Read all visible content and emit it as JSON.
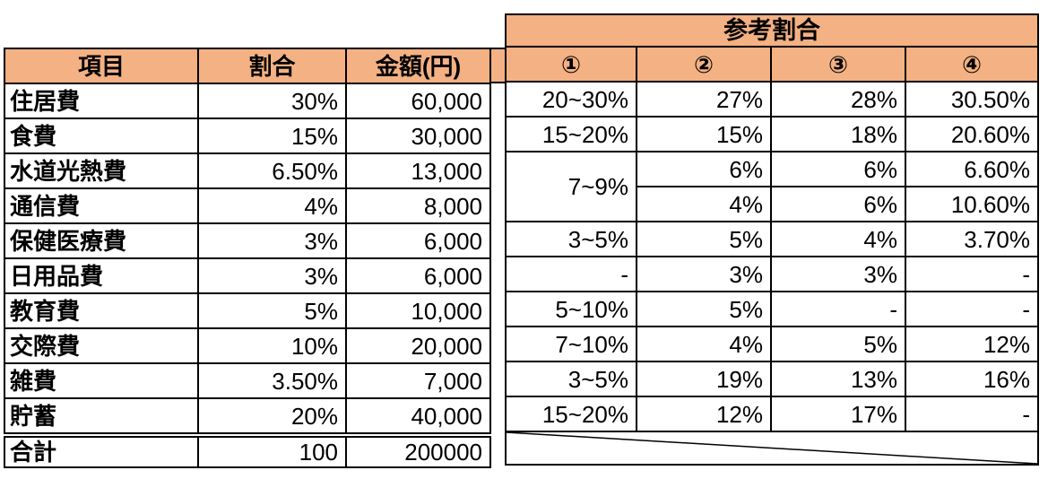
{
  "colors": {
    "header_bg": "#F4B183",
    "border": "#000000",
    "text": "#000000",
    "background": "#FFFFFF"
  },
  "left_table": {
    "headers": [
      "項目",
      "割合",
      "金額(円)"
    ],
    "rows": [
      {
        "item": "住居費",
        "ratio": "30%",
        "amount": "60,000"
      },
      {
        "item": "食費",
        "ratio": "15%",
        "amount": "30,000"
      },
      {
        "item": "水道光熱費",
        "ratio": "6.50%",
        "amount": "13,000"
      },
      {
        "item": "通信費",
        "ratio": "4%",
        "amount": "8,000"
      },
      {
        "item": "保健医療費",
        "ratio": "3%",
        "amount": "6,000"
      },
      {
        "item": "日用品費",
        "ratio": "3%",
        "amount": "6,000"
      },
      {
        "item": "教育費",
        "ratio": "5%",
        "amount": "10,000"
      },
      {
        "item": "交際費",
        "ratio": "10%",
        "amount": "20,000"
      },
      {
        "item": "雑費",
        "ratio": "3.50%",
        "amount": "7,000"
      },
      {
        "item": "貯蓄",
        "ratio": "20%",
        "amount": "40,000"
      }
    ],
    "total": {
      "item": "合計",
      "ratio": "100",
      "amount": "200000"
    }
  },
  "right_table": {
    "title": "参考割合",
    "headers": [
      "①",
      "②",
      "③",
      "④"
    ],
    "rows": [
      [
        "20~30%",
        "27%",
        "28%",
        "30.50%"
      ],
      [
        "15~20%",
        "15%",
        "18%",
        "20.60%"
      ],
      [
        "7~9%",
        "6%",
        "6%",
        "6.60%"
      ],
      [
        null,
        "4%",
        "6%",
        "10.60%"
      ],
      [
        "3~5%",
        "5%",
        "4%",
        "3.70%"
      ],
      [
        "-",
        "3%",
        "3%",
        "-"
      ],
      [
        "5~10%",
        "5%",
        "-",
        "-"
      ],
      [
        "7~10%",
        "4%",
        "5%",
        "12%"
      ],
      [
        "3~5%",
        "19%",
        "13%",
        "16%"
      ],
      [
        "15~20%",
        "12%",
        "17%",
        "-"
      ]
    ],
    "merges": [
      {
        "row": 2,
        "col": 0,
        "rowspan": 2
      }
    ]
  }
}
